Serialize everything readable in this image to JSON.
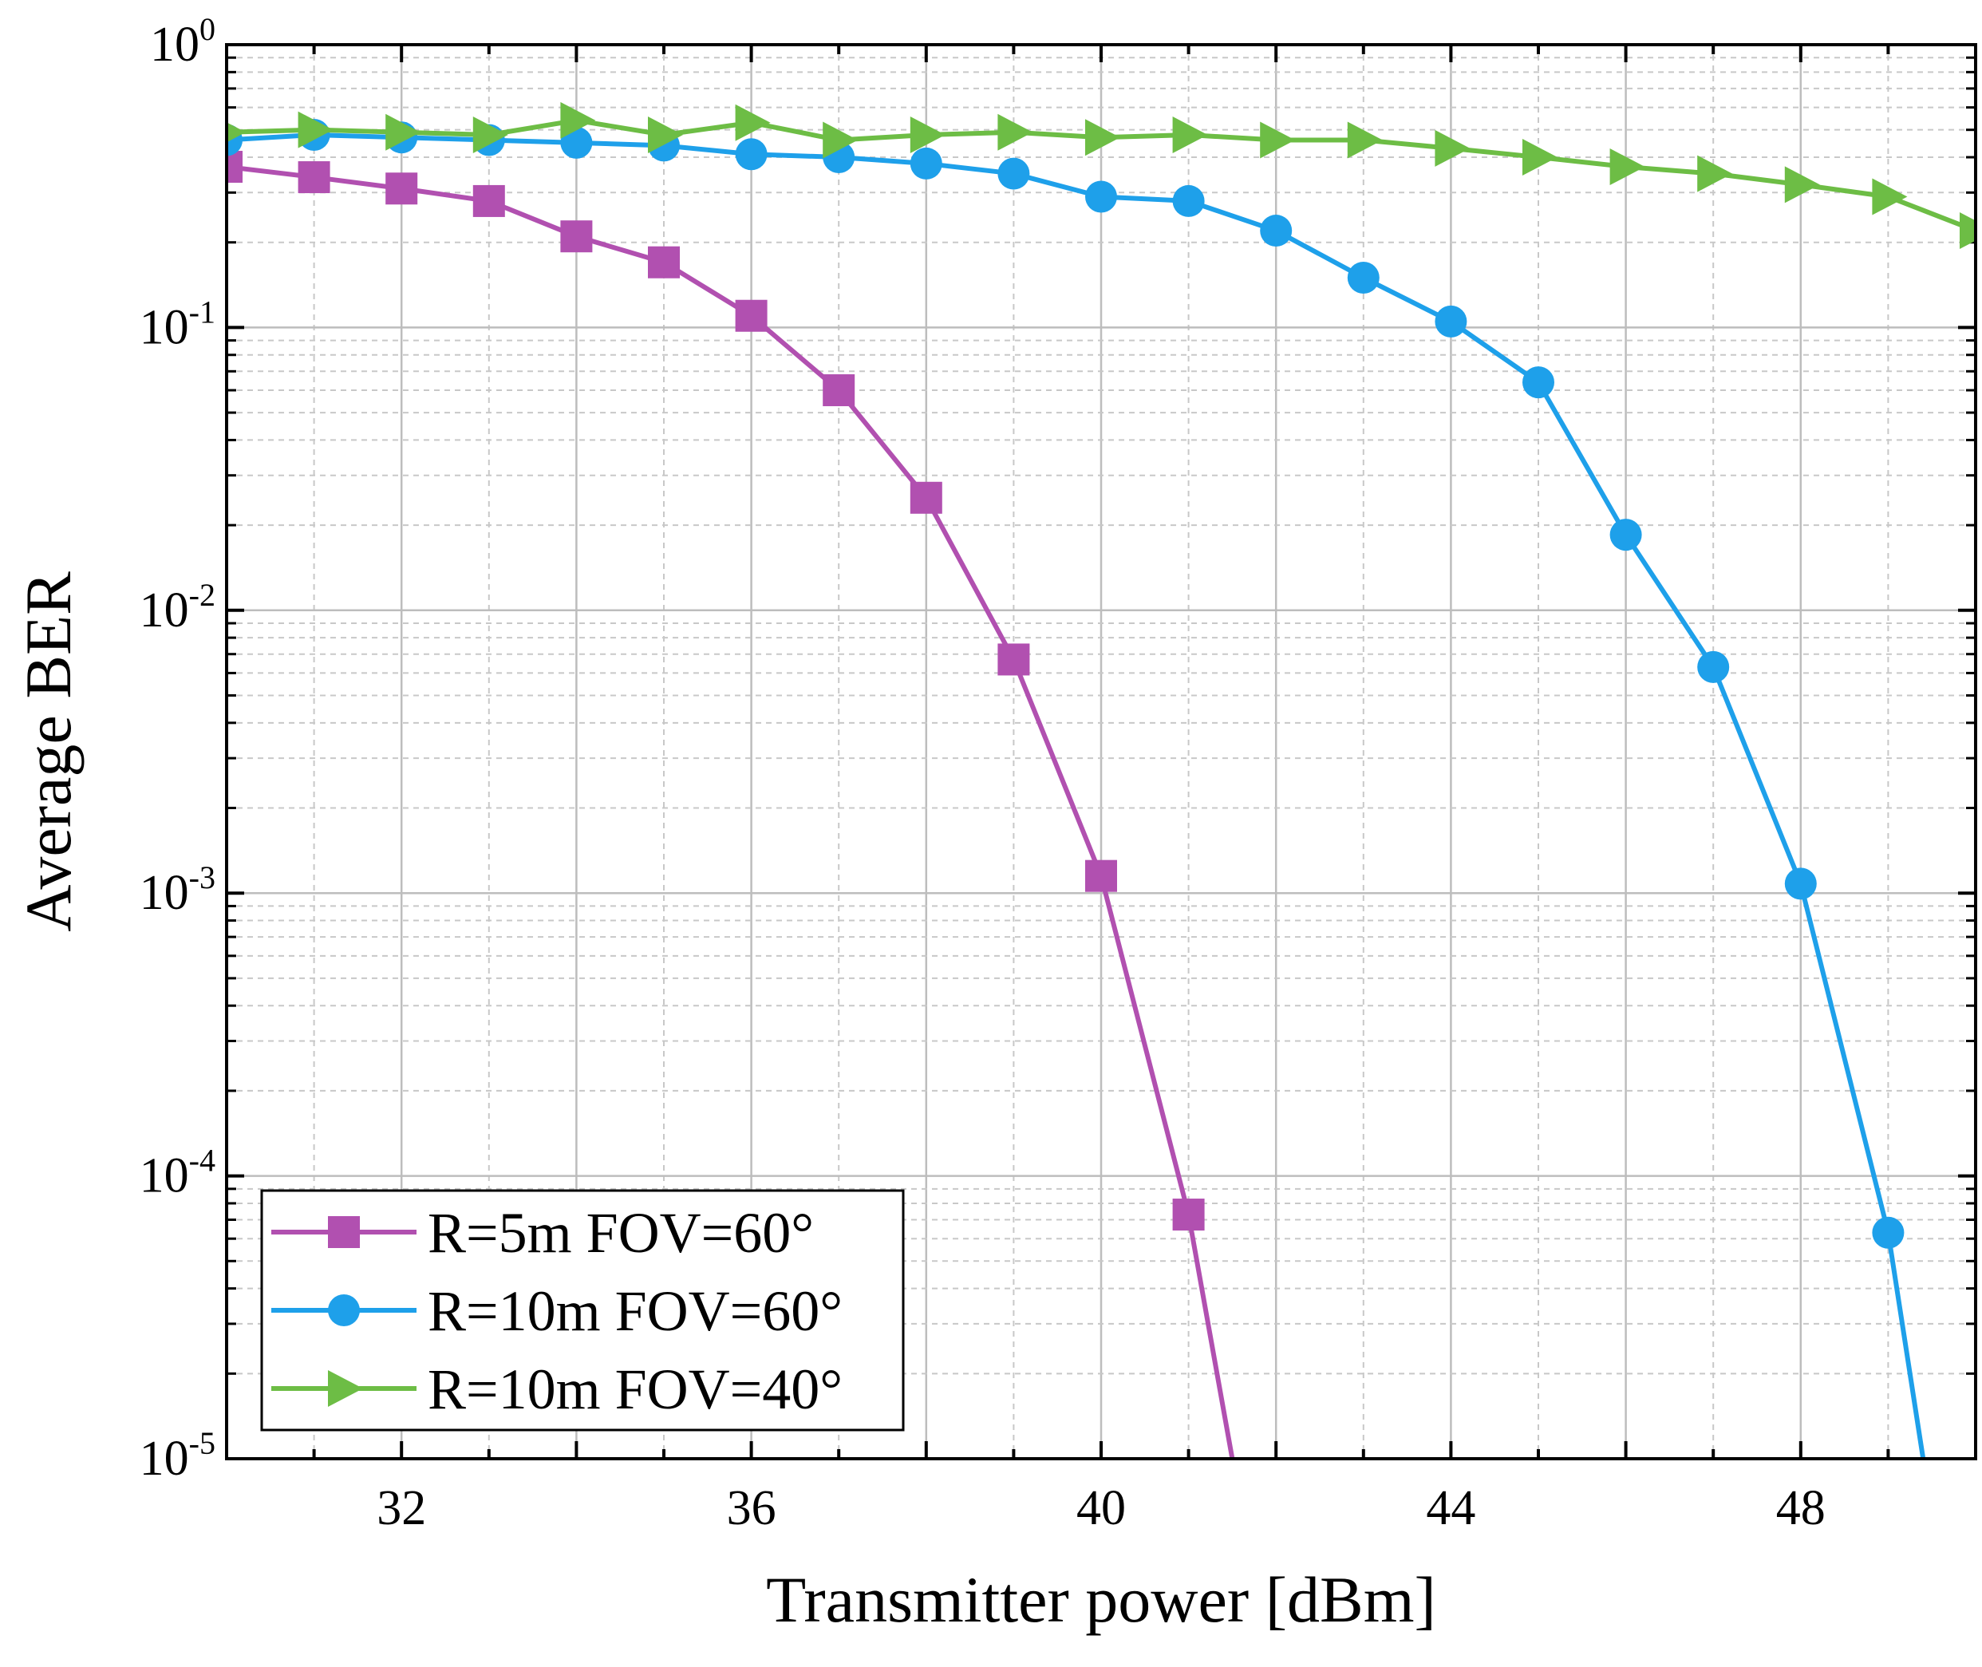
{
  "chart_data": {
    "type": "line",
    "title": "",
    "xlabel": "Transmitter power [dBm]",
    "ylabel": "Average BER",
    "xlim": [
      30,
      50
    ],
    "ylim": [
      1e-05,
      1
    ],
    "yscale": "log",
    "grid": true,
    "x_ticks": [
      {
        "value": 32,
        "label": "32"
      },
      {
        "value": 36,
        "label": "36"
      },
      {
        "value": 40,
        "label": "40"
      },
      {
        "value": 44,
        "label": "44"
      },
      {
        "value": 48,
        "label": "48"
      }
    ],
    "y_ticks": [
      {
        "value": 1,
        "base": "10",
        "exp": "0"
      },
      {
        "value": 0.1,
        "base": "10",
        "exp": "-1"
      },
      {
        "value": 0.01,
        "base": "10",
        "exp": "-2"
      },
      {
        "value": 0.001,
        "base": "10",
        "exp": "-3"
      },
      {
        "value": 0.0001,
        "base": "10",
        "exp": "-4"
      },
      {
        "value": 1e-05,
        "base": "10",
        "exp": "-5"
      }
    ],
    "legend_position": "bottom-left",
    "series": [
      {
        "name": "R=5m  FOV=60°",
        "color": "#b150b0",
        "marker": "square",
        "x": [
          30,
          31,
          32,
          33,
          34,
          35,
          36,
          37,
          38,
          39,
          40,
          41,
          41.5
        ],
        "y": [
          0.37,
          0.34,
          0.31,
          0.28,
          0.21,
          0.17,
          0.11,
          0.06,
          0.025,
          0.0067,
          0.00115,
          7.3e-05,
          1e-05
        ],
        "marker_count": 12
      },
      {
        "name": "R=10m FOV=60°",
        "color": "#1ea0ea",
        "marker": "circle",
        "x": [
          30,
          31,
          32,
          33,
          34,
          35,
          36,
          37,
          38,
          39,
          40,
          41,
          42,
          43,
          44,
          45,
          46,
          47,
          48,
          49,
          49.4
        ],
        "y": [
          0.46,
          0.48,
          0.47,
          0.46,
          0.45,
          0.44,
          0.41,
          0.4,
          0.38,
          0.35,
          0.29,
          0.28,
          0.22,
          0.15,
          0.105,
          0.064,
          0.0185,
          0.0063,
          0.00108,
          6.3e-05,
          1e-05
        ],
        "marker_count": 20
      },
      {
        "name": "R=10m FOV=40°",
        "color": "#6dbd45",
        "marker": "triangle-right",
        "x": [
          30,
          31,
          32,
          33,
          34,
          35,
          36,
          37,
          38,
          39,
          40,
          41,
          42,
          43,
          44,
          45,
          46,
          47,
          48,
          49,
          50
        ],
        "y": [
          0.49,
          0.5,
          0.49,
          0.48,
          0.54,
          0.48,
          0.53,
          0.46,
          0.48,
          0.49,
          0.47,
          0.48,
          0.46,
          0.46,
          0.43,
          0.4,
          0.37,
          0.35,
          0.32,
          0.29,
          0.22
        ],
        "marker_count": 21
      }
    ]
  }
}
